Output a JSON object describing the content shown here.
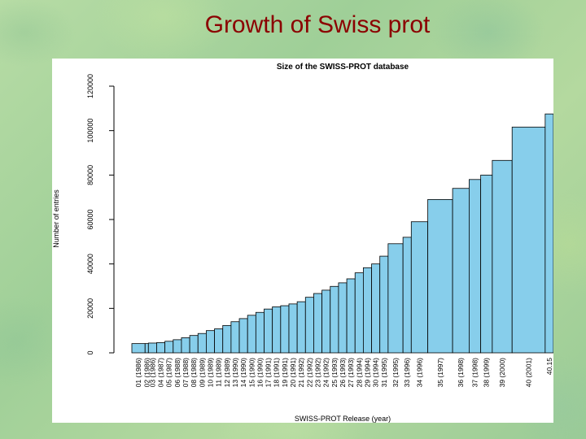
{
  "slide": {
    "title": "Growth of Swiss prot"
  },
  "colors": {
    "bar_fill": "#87ceeb",
    "bar_stroke": "#000000",
    "title_color": "#8b0000"
  },
  "chart_data": {
    "type": "bar",
    "title": "Size of the SWISS-PROT database",
    "xlabel": "SWISS-PROT Release (year)",
    "ylabel": "Number of entries",
    "ylim": [
      0,
      120000
    ],
    "yticks": [
      0,
      20000,
      40000,
      60000,
      80000,
      100000,
      120000
    ],
    "grid": false,
    "categories": [
      "01 (1986)",
      "02 (1986)",
      "03 (1986)",
      "04 (1987)",
      "05 (1987)",
      "06 (1988)",
      "07 (1988)",
      "08 (1988)",
      "09 (1989)",
      "10 (1989)",
      "11 (1989)",
      "12 (1989)",
      "13 (1990)",
      "14 (1990)",
      "15 (1990)",
      "16 (1990)",
      "17 (1991)",
      "18 (1991)",
      "19 (1991)",
      "20 (1991)",
      "21 (1992)",
      "22 (1992)",
      "23 (1992)",
      "24 (1992)",
      "25 (1993)",
      "26 (1993)",
      "27 (1993)",
      "28 (1994)",
      "29 (1994)",
      "30 (1994)",
      "31 (1995)",
      "32 (1995)",
      "33 (1996)",
      "34 (1996)",
      "35 (1997)",
      "36 (1998)",
      "37 (1998)",
      "38 (1999)",
      "39 (2000)",
      "40 (2001)",
      "40.15"
    ],
    "values": [
      4160,
      4160,
      4400,
      4600,
      5200,
      5900,
      6800,
      7800,
      8700,
      10000,
      10800,
      12300,
      14000,
      15400,
      16900,
      18200,
      19700,
      20700,
      21200,
      22000,
      23000,
      25000,
      26700,
      28200,
      29900,
      31500,
      33300,
      36000,
      38300,
      40000,
      43500,
      49100,
      52000,
      59000,
      69000,
      74000,
      78000,
      80000,
      86600,
      101600,
      107500
    ],
    "bar_widths": [
      0.8,
      0.2,
      0.5,
      0.5,
      0.5,
      0.5,
      0.5,
      0.5,
      0.5,
      0.5,
      0.5,
      0.5,
      0.5,
      0.5,
      0.5,
      0.5,
      0.5,
      0.5,
      0.5,
      0.5,
      0.5,
      0.5,
      0.5,
      0.5,
      0.5,
      0.5,
      0.5,
      0.5,
      0.5,
      0.5,
      0.5,
      0.9,
      0.5,
      1.0,
      1.5,
      1.0,
      0.7,
      0.7,
      1.2,
      2.0,
      0.5
    ]
  }
}
